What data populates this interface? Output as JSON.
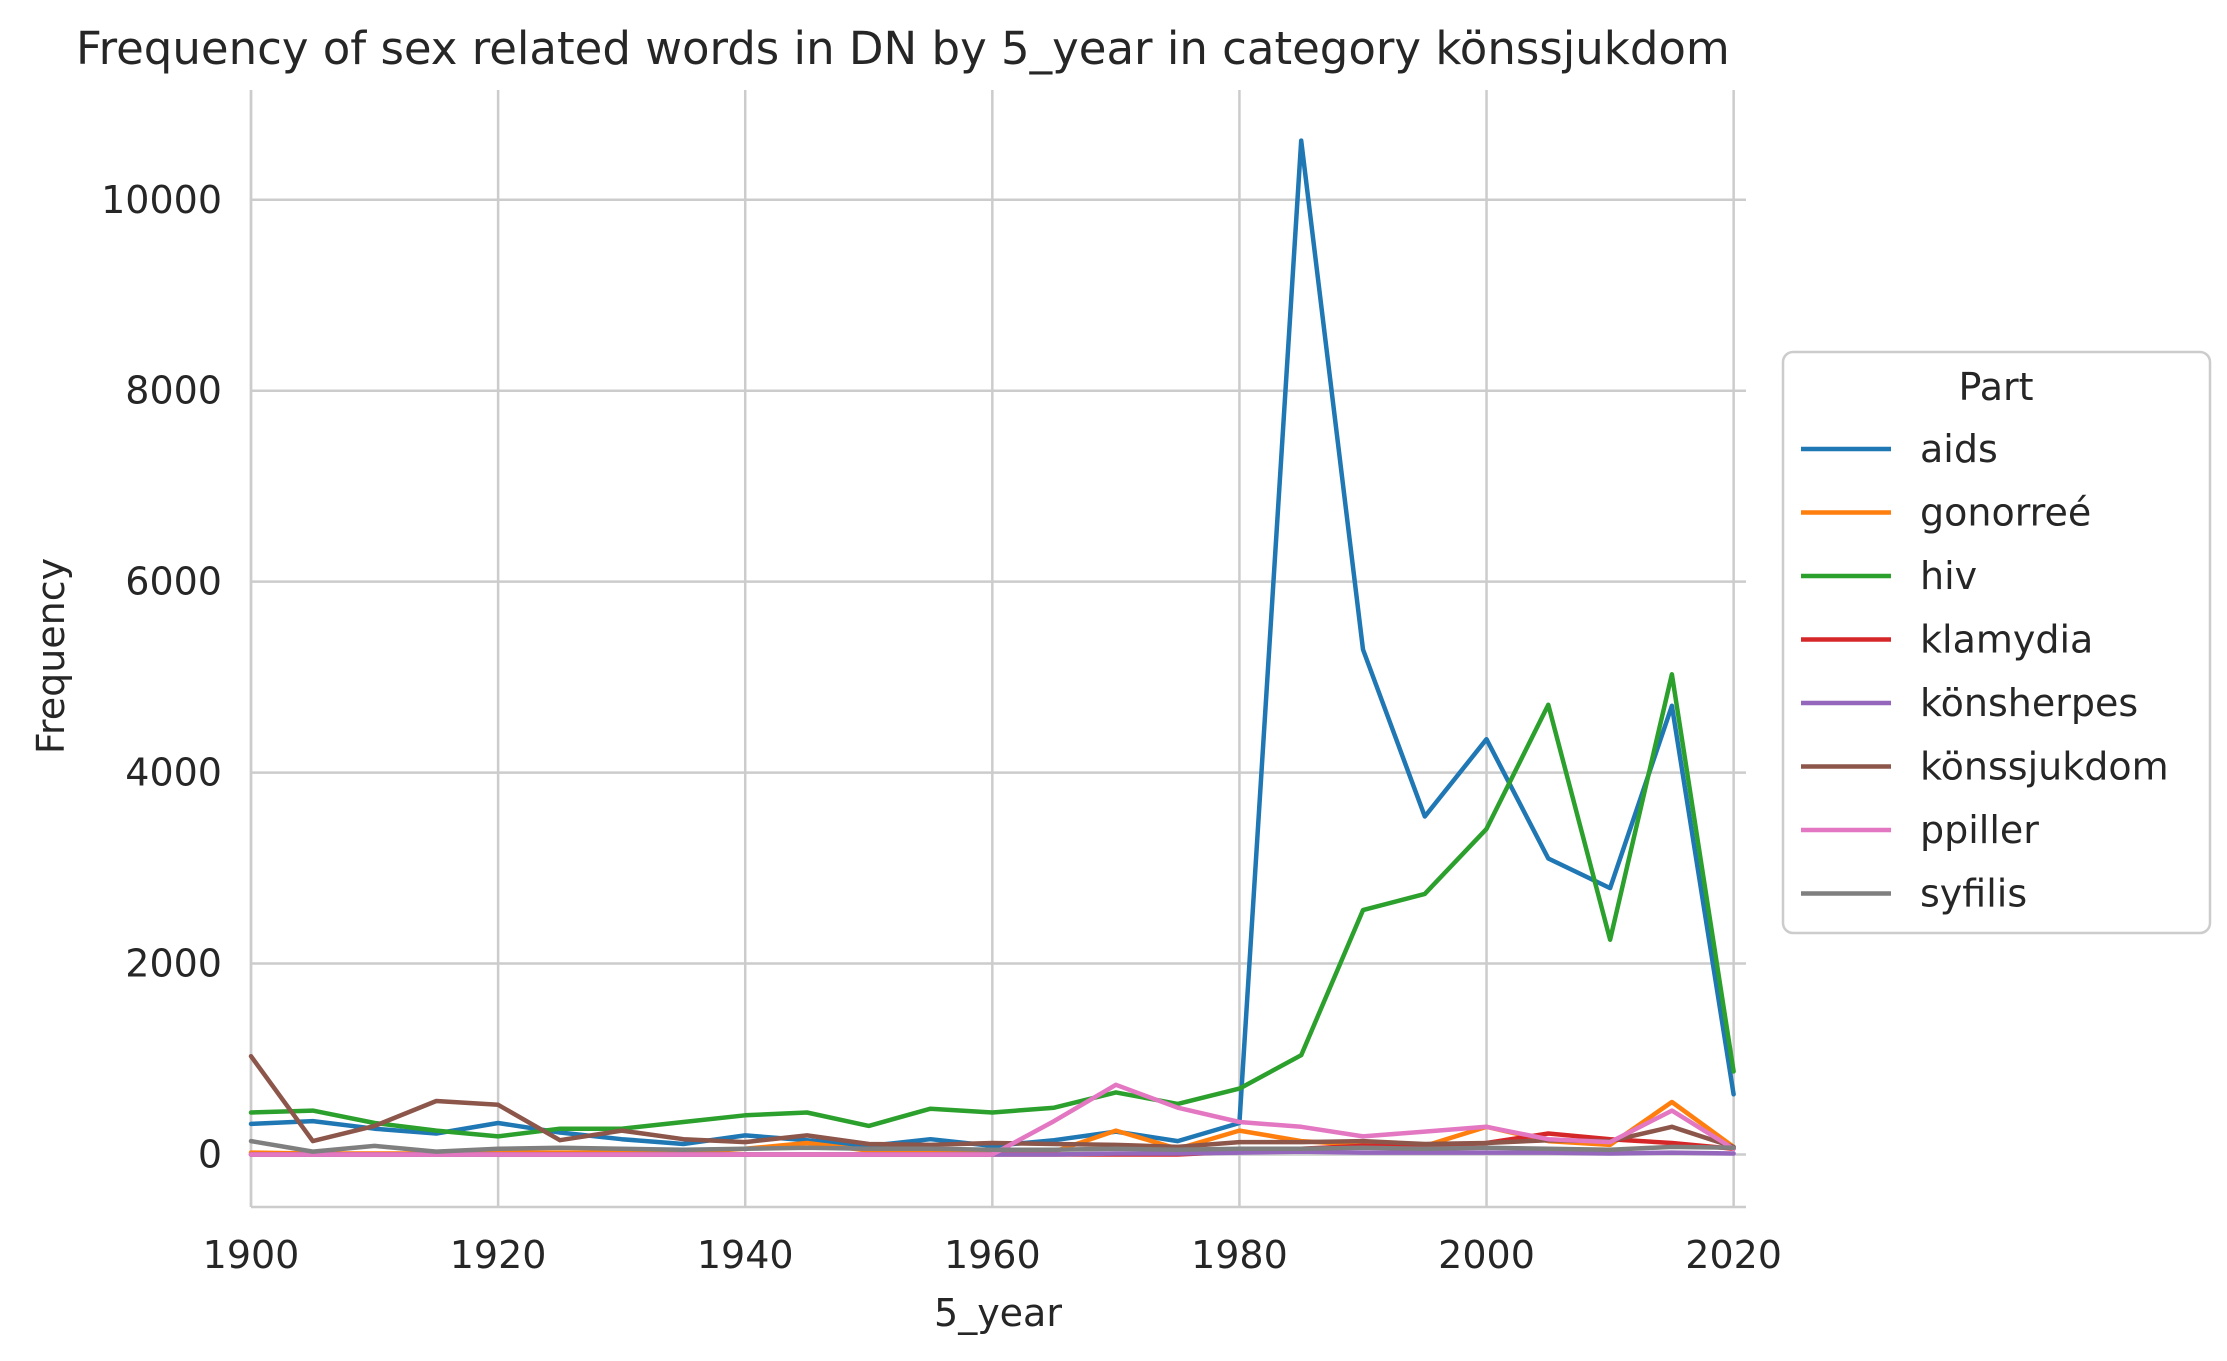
{
  "chart_data": {
    "type": "line",
    "title": "Frequency of sex related words in DN by 5_year in category könssjukdom",
    "xlabel": "5_year",
    "ylabel": "Frequency",
    "xlim": [
      1900,
      2021
    ],
    "ylim": [
      -550,
      11150
    ],
    "xticks": [
      1900,
      1920,
      1940,
      1960,
      1980,
      2000,
      2020
    ],
    "yticks": [
      0,
      2000,
      4000,
      6000,
      8000,
      10000
    ],
    "grid": true,
    "legend": {
      "title": "Part",
      "placement": "right"
    },
    "x": [
      1900,
      1905,
      1910,
      1915,
      1920,
      1925,
      1930,
      1935,
      1940,
      1945,
      1950,
      1955,
      1960,
      1965,
      1970,
      1975,
      1980,
      1985,
      1990,
      1995,
      2000,
      2005,
      2010,
      2015,
      2020
    ],
    "series": [
      {
        "name": "aids",
        "color": "#1f77b4",
        "values": [
          320,
          350,
          270,
          220,
          330,
          230,
          160,
          110,
          200,
          150,
          90,
          160,
          90,
          150,
          240,
          140,
          330,
          10620,
          5290,
          3540,
          4350,
          3100,
          2790,
          4700,
          630
        ]
      },
      {
        "name": "gonorreé",
        "color": "#ff7f0e",
        "values": [
          20,
          10,
          10,
          10,
          20,
          20,
          20,
          20,
          60,
          120,
          40,
          30,
          20,
          30,
          250,
          60,
          250,
          140,
          100,
          90,
          290,
          140,
          100,
          550,
          80
        ]
      },
      {
        "name": "hiv",
        "color": "#2ca02c",
        "values": [
          440,
          460,
          330,
          250,
          190,
          270,
          270,
          340,
          410,
          440,
          300,
          480,
          440,
          490,
          650,
          530,
          690,
          1040,
          2560,
          2730,
          3410,
          4710,
          2250,
          5030,
          870
        ]
      },
      {
        "name": "klamydia",
        "color": "#d62728",
        "values": [
          0,
          0,
          0,
          0,
          0,
          0,
          0,
          0,
          0,
          0,
          0,
          0,
          0,
          0,
          0,
          0,
          30,
          60,
          90,
          80,
          120,
          220,
          160,
          120,
          60
        ]
      },
      {
        "name": "könsherpes",
        "color": "#9467bd",
        "values": [
          0,
          0,
          0,
          0,
          0,
          0,
          0,
          0,
          0,
          0,
          0,
          0,
          0,
          0,
          10,
          10,
          20,
          30,
          20,
          20,
          20,
          20,
          10,
          20,
          10
        ]
      },
      {
        "name": "könssjukdom",
        "color": "#8c564b",
        "values": [
          1030,
          140,
          300,
          560,
          520,
          150,
          250,
          160,
          130,
          200,
          110,
          100,
          120,
          110,
          100,
          80,
          130,
          130,
          140,
          110,
          120,
          150,
          140,
          290,
          80
        ]
      },
      {
        "name": "ppiller",
        "color": "#e377c2",
        "values": [
          0,
          0,
          0,
          0,
          0,
          0,
          0,
          0,
          0,
          0,
          0,
          0,
          0,
          350,
          730,
          490,
          340,
          290,
          190,
          240,
          290,
          160,
          130,
          460,
          60
        ]
      },
      {
        "name": "syfilis",
        "color": "#7f7f7f",
        "values": [
          140,
          30,
          90,
          30,
          60,
          70,
          60,
          50,
          60,
          70,
          60,
          60,
          50,
          50,
          60,
          50,
          60,
          60,
          70,
          60,
          70,
          60,
          50,
          80,
          70
        ]
      }
    ]
  }
}
